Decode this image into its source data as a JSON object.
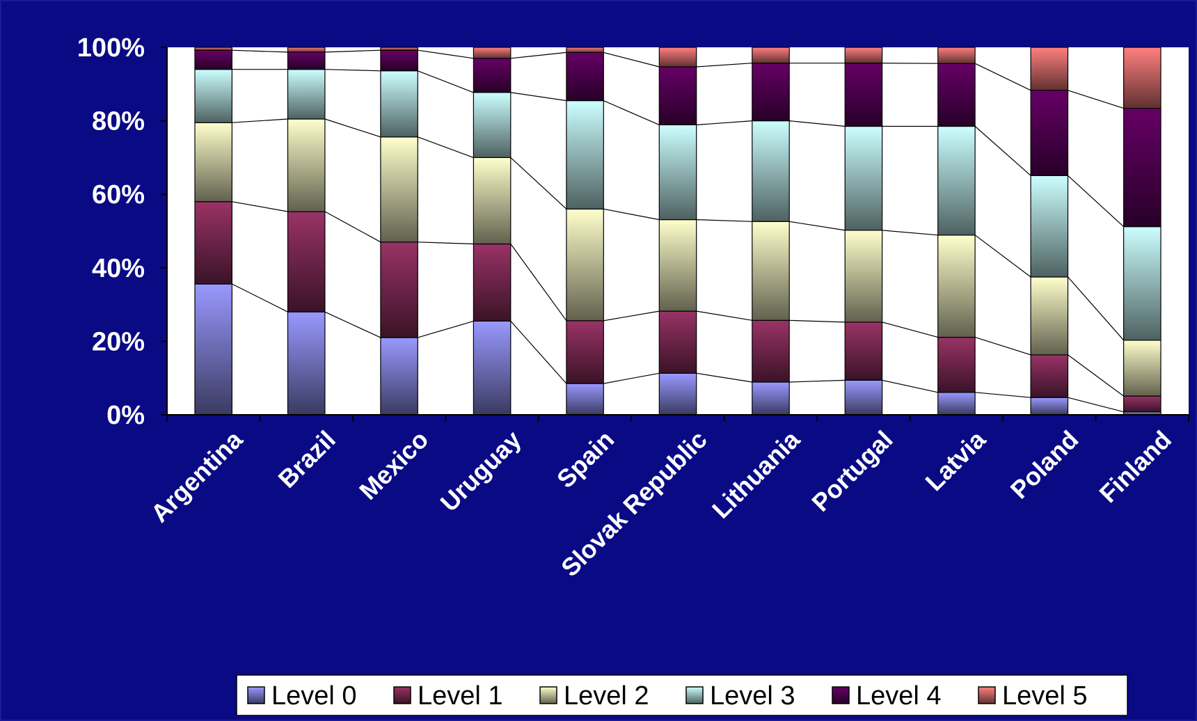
{
  "chart_data": {
    "type": "bar",
    "stacked": true,
    "percent": true,
    "title": "",
    "xlabel": "",
    "ylabel": "",
    "ylim": [
      0,
      100
    ],
    "y_ticks": [
      "0%",
      "20%",
      "40%",
      "60%",
      "80%",
      "100%"
    ],
    "grid": false,
    "series_connector_lines": true,
    "legend_position": "bottom-right",
    "categories": [
      "Argentina",
      "Brazil",
      "Mexico",
      "Uruguay",
      "Spain",
      "Slovak Republic",
      "Lithuania",
      "Portugal",
      "Latvia",
      "Poland",
      "Finland"
    ],
    "series": [
      {
        "name": "Level 0",
        "color": "#9999ff",
        "values": [
          35.6,
          28.0,
          21.0,
          25.5,
          8.5,
          11.3,
          8.9,
          9.4,
          6.1,
          4.7,
          0.8
        ]
      },
      {
        "name": "Level 1",
        "color": "#993366",
        "values": [
          22.4,
          27.3,
          26.0,
          21.0,
          17.1,
          16.9,
          16.8,
          15.8,
          15.0,
          11.6,
          4.3
        ]
      },
      {
        "name": "Level 2",
        "color": "#ffffcc",
        "values": [
          21.5,
          25.2,
          28.6,
          23.5,
          30.4,
          24.9,
          26.9,
          25.0,
          27.8,
          21.2,
          15.2
        ]
      },
      {
        "name": "Level 3",
        "color": "#ccffff",
        "values": [
          14.5,
          13.5,
          18.0,
          17.7,
          29.5,
          25.8,
          27.4,
          28.3,
          29.6,
          27.6,
          30.9
        ]
      },
      {
        "name": "Level 4",
        "color": "#660066",
        "values": [
          5.2,
          4.7,
          5.6,
          9.3,
          13.1,
          15.8,
          15.7,
          17.2,
          17.1,
          23.2,
          32.2
        ]
      },
      {
        "name": "Level 5",
        "color": "#ff8080",
        "values": [
          0.8,
          1.3,
          0.8,
          3.0,
          1.4,
          5.3,
          4.3,
          4.3,
          4.4,
          11.7,
          16.6
        ]
      }
    ]
  }
}
